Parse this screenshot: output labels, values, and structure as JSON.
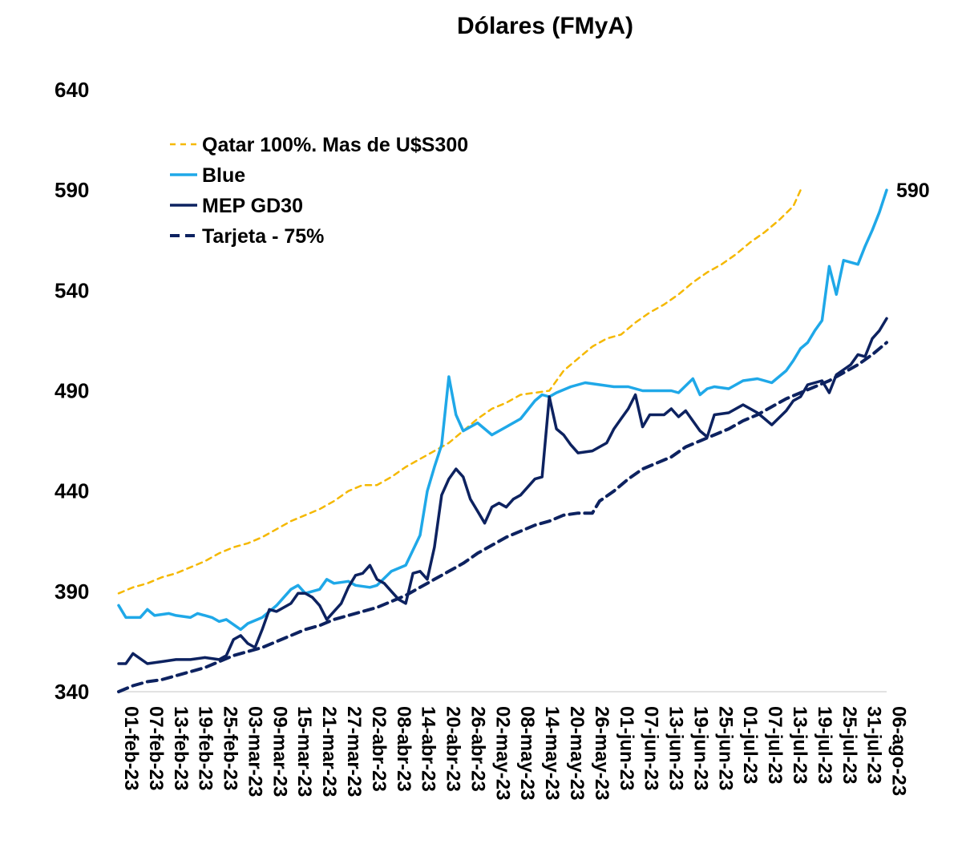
{
  "chart_data": {
    "type": "line",
    "title": "Dólares (FMyA)",
    "xlabel": "",
    "ylabel": "",
    "ylim": [
      340,
      640
    ],
    "yticks": [
      340,
      390,
      440,
      490,
      540,
      590,
      640
    ],
    "x_tick_labels": [
      "01-feb-23",
      "07-feb-23",
      "13-feb-23",
      "19-feb-23",
      "25-feb-23",
      "03-mar-23",
      "09-mar-23",
      "15-mar-23",
      "21-mar-23",
      "27-mar-23",
      "02-abr-23",
      "08-abr-23",
      "14-abr-23",
      "20-abr-23",
      "26-abr-23",
      "02-may-23",
      "08-may-23",
      "14-may-23",
      "20-may-23",
      "26-may-23",
      "01-jun-23",
      "07-jun-23",
      "13-jun-23",
      "19-jun-23",
      "25-jun-23",
      "01-jul-23",
      "07-jul-23",
      "13-jul-23",
      "19-jul-23",
      "25-jul-23",
      "31-jul-23",
      "06-ago-23"
    ],
    "grid": false,
    "legend_position": "top-left",
    "end_label": "590",
    "series": [
      {
        "name": "Qatar 100%. Mas de U$S300",
        "color": "#F5B800",
        "style": "dashed-thin",
        "points": [
          [
            0,
            389
          ],
          [
            4,
            392
          ],
          [
            8,
            394
          ],
          [
            12,
            397
          ],
          [
            16,
            399
          ],
          [
            20,
            402
          ],
          [
            24,
            405
          ],
          [
            28,
            409
          ],
          [
            32,
            412
          ],
          [
            36,
            414
          ],
          [
            40,
            417
          ],
          [
            44,
            421
          ],
          [
            48,
            425
          ],
          [
            52,
            428
          ],
          [
            56,
            431
          ],
          [
            60,
            435
          ],
          [
            64,
            440
          ],
          [
            68,
            443
          ],
          [
            72,
            443
          ],
          [
            76,
            447
          ],
          [
            80,
            452
          ],
          [
            84,
            456
          ],
          [
            88,
            460
          ],
          [
            92,
            464
          ],
          [
            96,
            470
          ],
          [
            100,
            476
          ],
          [
            104,
            481
          ],
          [
            108,
            484
          ],
          [
            112,
            488
          ],
          [
            116,
            489
          ],
          [
            120,
            490
          ],
          [
            124,
            500
          ],
          [
            128,
            506
          ],
          [
            132,
            512
          ],
          [
            136,
            516
          ],
          [
            140,
            518
          ],
          [
            144,
            524
          ],
          [
            148,
            529
          ],
          [
            152,
            533
          ],
          [
            156,
            538
          ],
          [
            160,
            544
          ],
          [
            164,
            549
          ],
          [
            168,
            553
          ],
          [
            172,
            558
          ],
          [
            176,
            564
          ],
          [
            180,
            569
          ],
          [
            184,
            575
          ],
          [
            188,
            582
          ],
          [
            190,
            590
          ]
        ]
      },
      {
        "name": "Blue",
        "color": "#1FA8E8",
        "style": "solid",
        "points": [
          [
            0,
            383
          ],
          [
            2,
            377
          ],
          [
            6,
            377
          ],
          [
            8,
            381
          ],
          [
            10,
            378
          ],
          [
            14,
            379
          ],
          [
            16,
            378
          ],
          [
            20,
            377
          ],
          [
            22,
            379
          ],
          [
            26,
            377
          ],
          [
            28,
            375
          ],
          [
            30,
            376
          ],
          [
            34,
            371
          ],
          [
            36,
            374
          ],
          [
            40,
            377
          ],
          [
            44,
            383
          ],
          [
            48,
            391
          ],
          [
            50,
            393
          ],
          [
            52,
            389
          ],
          [
            56,
            391
          ],
          [
            58,
            396
          ],
          [
            60,
            394
          ],
          [
            64,
            395
          ],
          [
            66,
            393
          ],
          [
            70,
            392
          ],
          [
            72,
            393
          ],
          [
            76,
            400
          ],
          [
            80,
            403
          ],
          [
            84,
            418
          ],
          [
            86,
            440
          ],
          [
            88,
            452
          ],
          [
            90,
            463
          ],
          [
            92,
            497
          ],
          [
            94,
            478
          ],
          [
            96,
            470
          ],
          [
            100,
            474
          ],
          [
            104,
            468
          ],
          [
            108,
            472
          ],
          [
            112,
            476
          ],
          [
            116,
            485
          ],
          [
            118,
            488
          ],
          [
            120,
            487
          ],
          [
            122,
            489
          ],
          [
            126,
            492
          ],
          [
            130,
            494
          ],
          [
            134,
            493
          ],
          [
            138,
            492
          ],
          [
            142,
            492
          ],
          [
            146,
            490
          ],
          [
            150,
            490
          ],
          [
            154,
            490
          ],
          [
            156,
            489
          ],
          [
            160,
            496
          ],
          [
            162,
            488
          ],
          [
            164,
            491
          ],
          [
            166,
            492
          ],
          [
            170,
            491
          ],
          [
            174,
            495
          ],
          [
            178,
            496
          ],
          [
            180,
            495
          ],
          [
            182,
            494
          ],
          [
            186,
            500
          ],
          [
            188,
            505
          ],
          [
            190,
            511
          ],
          [
            192,
            514
          ],
          [
            194,
            520
          ],
          [
            196,
            525
          ],
          [
            198,
            552
          ],
          [
            200,
            538
          ],
          [
            202,
            555
          ],
          [
            204,
            554
          ],
          [
            206,
            553
          ],
          [
            208,
            562
          ],
          [
            210,
            570
          ],
          [
            212,
            579
          ],
          [
            214,
            590
          ]
        ]
      },
      {
        "name": "MEP GD30",
        "color": "#0D2260",
        "style": "solid",
        "points": [
          [
            0,
            354
          ],
          [
            2,
            354
          ],
          [
            4,
            359
          ],
          [
            8,
            354
          ],
          [
            12,
            355
          ],
          [
            16,
            356
          ],
          [
            20,
            356
          ],
          [
            24,
            357
          ],
          [
            28,
            356
          ],
          [
            30,
            358
          ],
          [
            32,
            366
          ],
          [
            34,
            368
          ],
          [
            36,
            364
          ],
          [
            38,
            362
          ],
          [
            40,
            371
          ],
          [
            42,
            381
          ],
          [
            44,
            380
          ],
          [
            48,
            384
          ],
          [
            50,
            389
          ],
          [
            52,
            389
          ],
          [
            54,
            387
          ],
          [
            56,
            383
          ],
          [
            58,
            376
          ],
          [
            62,
            384
          ],
          [
            64,
            392
          ],
          [
            66,
            398
          ],
          [
            68,
            399
          ],
          [
            70,
            403
          ],
          [
            72,
            396
          ],
          [
            74,
            394
          ],
          [
            76,
            390
          ],
          [
            78,
            386
          ],
          [
            80,
            384
          ],
          [
            82,
            399
          ],
          [
            84,
            400
          ],
          [
            86,
            396
          ],
          [
            88,
            412
          ],
          [
            90,
            438
          ],
          [
            92,
            446
          ],
          [
            94,
            451
          ],
          [
            96,
            447
          ],
          [
            98,
            436
          ],
          [
            100,
            430
          ],
          [
            102,
            424
          ],
          [
            104,
            432
          ],
          [
            106,
            434
          ],
          [
            108,
            432
          ],
          [
            110,
            436
          ],
          [
            112,
            438
          ],
          [
            116,
            446
          ],
          [
            118,
            447
          ],
          [
            120,
            487
          ],
          [
            122,
            471
          ],
          [
            124,
            468
          ],
          [
            126,
            463
          ],
          [
            128,
            459
          ],
          [
            132,
            460
          ],
          [
            136,
            464
          ],
          [
            138,
            471
          ],
          [
            140,
            476
          ],
          [
            142,
            481
          ],
          [
            144,
            488
          ],
          [
            146,
            472
          ],
          [
            148,
            478
          ],
          [
            152,
            478
          ],
          [
            154,
            481
          ],
          [
            156,
            477
          ],
          [
            158,
            480
          ],
          [
            162,
            470
          ],
          [
            164,
            467
          ],
          [
            166,
            478
          ],
          [
            170,
            479
          ],
          [
            174,
            483
          ],
          [
            178,
            479
          ],
          [
            180,
            476
          ],
          [
            182,
            473
          ],
          [
            186,
            480
          ],
          [
            188,
            485
          ],
          [
            190,
            487
          ],
          [
            192,
            493
          ],
          [
            194,
            494
          ],
          [
            196,
            495
          ],
          [
            198,
            489
          ],
          [
            200,
            498
          ],
          [
            204,
            503
          ],
          [
            206,
            508
          ],
          [
            208,
            507
          ],
          [
            210,
            516
          ],
          [
            212,
            520
          ],
          [
            214,
            526
          ]
        ]
      },
      {
        "name": "Tarjeta - 75%",
        "color": "#0D2260",
        "style": "dashed-thick",
        "points": [
          [
            0,
            340
          ],
          [
            4,
            343
          ],
          [
            8,
            345
          ],
          [
            12,
            346
          ],
          [
            16,
            348
          ],
          [
            20,
            350
          ],
          [
            24,
            352
          ],
          [
            28,
            355
          ],
          [
            32,
            358
          ],
          [
            36,
            360
          ],
          [
            40,
            362
          ],
          [
            44,
            365
          ],
          [
            48,
            368
          ],
          [
            52,
            371
          ],
          [
            56,
            373
          ],
          [
            60,
            376
          ],
          [
            64,
            378
          ],
          [
            68,
            380
          ],
          [
            72,
            382
          ],
          [
            76,
            385
          ],
          [
            80,
            388
          ],
          [
            84,
            392
          ],
          [
            88,
            396
          ],
          [
            92,
            400
          ],
          [
            96,
            404
          ],
          [
            100,
            409
          ],
          [
            104,
            413
          ],
          [
            108,
            417
          ],
          [
            112,
            420
          ],
          [
            116,
            423
          ],
          [
            120,
            425
          ],
          [
            124,
            428
          ],
          [
            128,
            429
          ],
          [
            132,
            429
          ],
          [
            134,
            435
          ],
          [
            138,
            440
          ],
          [
            142,
            446
          ],
          [
            146,
            451
          ],
          [
            150,
            454
          ],
          [
            154,
            457
          ],
          [
            158,
            462
          ],
          [
            162,
            465
          ],
          [
            166,
            468
          ],
          [
            170,
            471
          ],
          [
            174,
            475
          ],
          [
            178,
            478
          ],
          [
            182,
            482
          ],
          [
            186,
            486
          ],
          [
            190,
            489
          ],
          [
            194,
            492
          ],
          [
            198,
            495
          ],
          [
            202,
            499
          ],
          [
            206,
            503
          ],
          [
            210,
            508
          ],
          [
            214,
            514
          ]
        ]
      }
    ]
  }
}
